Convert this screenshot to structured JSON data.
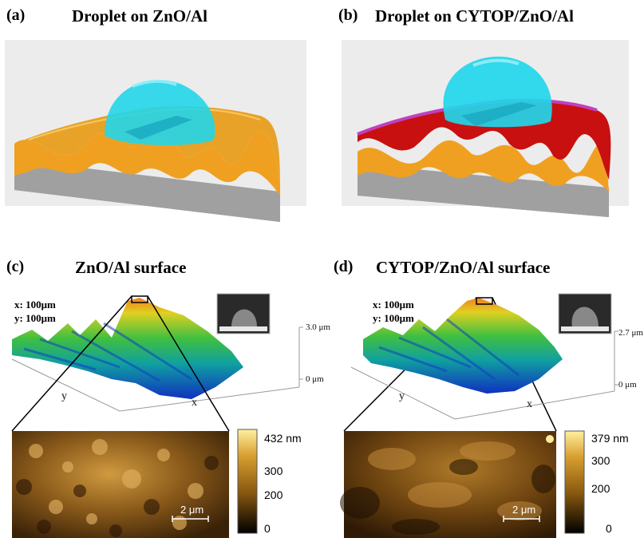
{
  "panels": [
    {
      "letter": "(a)",
      "title": "Droplet on ZnO/Al"
    },
    {
      "letter": "(b)",
      "title": "Droplet on CYTOP/ZnO/Al"
    },
    {
      "letter": "(c)",
      "title": "ZnO/Al surface"
    },
    {
      "letter": "(d)",
      "title": "CYTOP/ZnO/Al surface"
    }
  ],
  "scan": {
    "c": {
      "x": "x: 100μm",
      "y": "y: 100μm",
      "zmax": "3.0 μm",
      "zmin": "0 μm",
      "axis_x": "x",
      "axis_y": "y"
    },
    "d": {
      "x": "x: 100μm",
      "y": "y: 100μm",
      "zmax": "2.7 μm",
      "zmin": "0 μm",
      "axis_x": "x",
      "axis_y": "y"
    }
  },
  "afm": {
    "c": {
      "colorbar_ticks": [
        "432 nm",
        "300",
        "200",
        "0"
      ],
      "scalebar": "2 μm"
    },
    "d": {
      "colorbar_ticks": [
        "379 nm",
        "300",
        "200",
        "0"
      ],
      "scalebar": "2 μm"
    }
  },
  "colors": {
    "zno_orange": "#f0a020",
    "substrate_gray": "#8a8a8a",
    "droplet_cyan": "#22d6ea",
    "cytop_red": "#c81010",
    "cytop_magenta": "#c040c0"
  }
}
